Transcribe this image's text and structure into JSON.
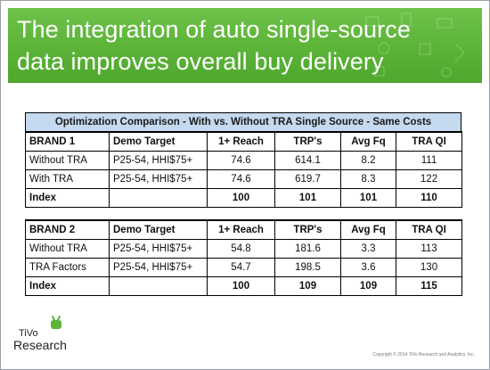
{
  "header": {
    "title_line1": "The integration of auto single-source",
    "title_line2": "data improves overall buy delivery"
  },
  "table": {
    "caption": "Optimization Comparison - With vs. Without TRA Single Source - Same Costs",
    "brand1": {
      "header": [
        "BRAND 1",
        "Demo Target",
        "1+ Reach",
        "TRP's",
        "Avg Fq",
        "TRA QI"
      ],
      "rows": [
        [
          "Without TRA",
          "P25-54, HHI$75+",
          "74.6",
          "614.1",
          "8.2",
          "111"
        ],
        [
          "With TRA",
          "P25-54, HHI$75+",
          "74.6",
          "619.7",
          "8.3",
          "122"
        ],
        [
          "Index",
          "",
          "100",
          "101",
          "101",
          "110"
        ]
      ]
    },
    "brand2": {
      "header": [
        "BRAND 2",
        "Demo Target",
        "1+ Reach",
        "TRP's",
        "Avg Fq",
        "TRA QI"
      ],
      "rows": [
        [
          "Without TRA",
          "P25-54, HHI$75+",
          "54.8",
          "181.6",
          "3.3",
          "113"
        ],
        [
          "TRA Factors",
          "P25-54, HHI$75+",
          "54.7",
          "198.5",
          "3.6",
          "130"
        ],
        [
          "Index",
          "",
          "100",
          "109",
          "109",
          "115"
        ]
      ]
    }
  },
  "logo": {
    "line1": "TiVo",
    "line2": "Research"
  },
  "footer": {
    "copyright": "Copyright © 2014 TiVo Research and Analytics, Inc."
  },
  "colors": {
    "header_green": "#5bb338",
    "caption_blue": "#c5d9ef"
  }
}
